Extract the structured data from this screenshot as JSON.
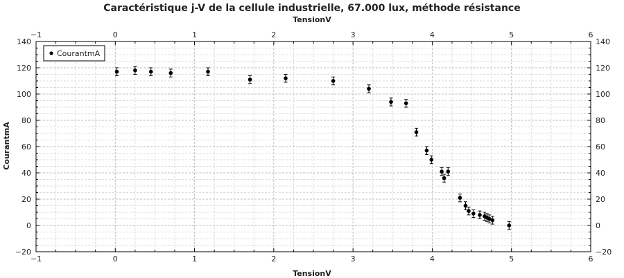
{
  "chart_data": {
    "type": "scatter",
    "title": "Caractéristique j-V de la cellule industrielle, 67.000 lux, méthode résistance",
    "xlabel": "TensionV",
    "ylabel": "CourantmA",
    "xlim": [
      -1,
      6
    ],
    "ylim": [
      -20,
      140
    ],
    "x_ticks": [
      -1,
      0,
      1,
      2,
      3,
      4,
      5,
      6
    ],
    "y_ticks": [
      -20,
      0,
      20,
      40,
      60,
      80,
      100,
      120,
      140
    ],
    "grid": true,
    "legend_position": "top-left",
    "series": [
      {
        "name": "CourantmA",
        "color": "#000000",
        "points": [
          {
            "x": 0.02,
            "y": 117
          },
          {
            "x": 0.25,
            "y": 118
          },
          {
            "x": 0.45,
            "y": 117
          },
          {
            "x": 0.7,
            "y": 116
          },
          {
            "x": 1.17,
            "y": 117
          },
          {
            "x": 1.7,
            "y": 111
          },
          {
            "x": 2.15,
            "y": 112
          },
          {
            "x": 2.75,
            "y": 110
          },
          {
            "x": 3.2,
            "y": 104
          },
          {
            "x": 3.48,
            "y": 94
          },
          {
            "x": 3.67,
            "y": 93
          },
          {
            "x": 3.8,
            "y": 71
          },
          {
            "x": 3.93,
            "y": 57
          },
          {
            "x": 3.99,
            "y": 50
          },
          {
            "x": 4.12,
            "y": 41
          },
          {
            "x": 4.15,
            "y": 36
          },
          {
            "x": 4.2,
            "y": 41
          },
          {
            "x": 4.35,
            "y": 21
          },
          {
            "x": 4.42,
            "y": 15
          },
          {
            "x": 4.46,
            "y": 11
          },
          {
            "x": 4.52,
            "y": 9
          },
          {
            "x": 4.6,
            "y": 8
          },
          {
            "x": 4.66,
            "y": 7
          },
          {
            "x": 4.69,
            "y": 6
          },
          {
            "x": 4.72,
            "y": 5
          },
          {
            "x": 4.76,
            "y": 4
          },
          {
            "x": 4.97,
            "y": 0
          }
        ],
        "error_y": 3
      }
    ]
  }
}
